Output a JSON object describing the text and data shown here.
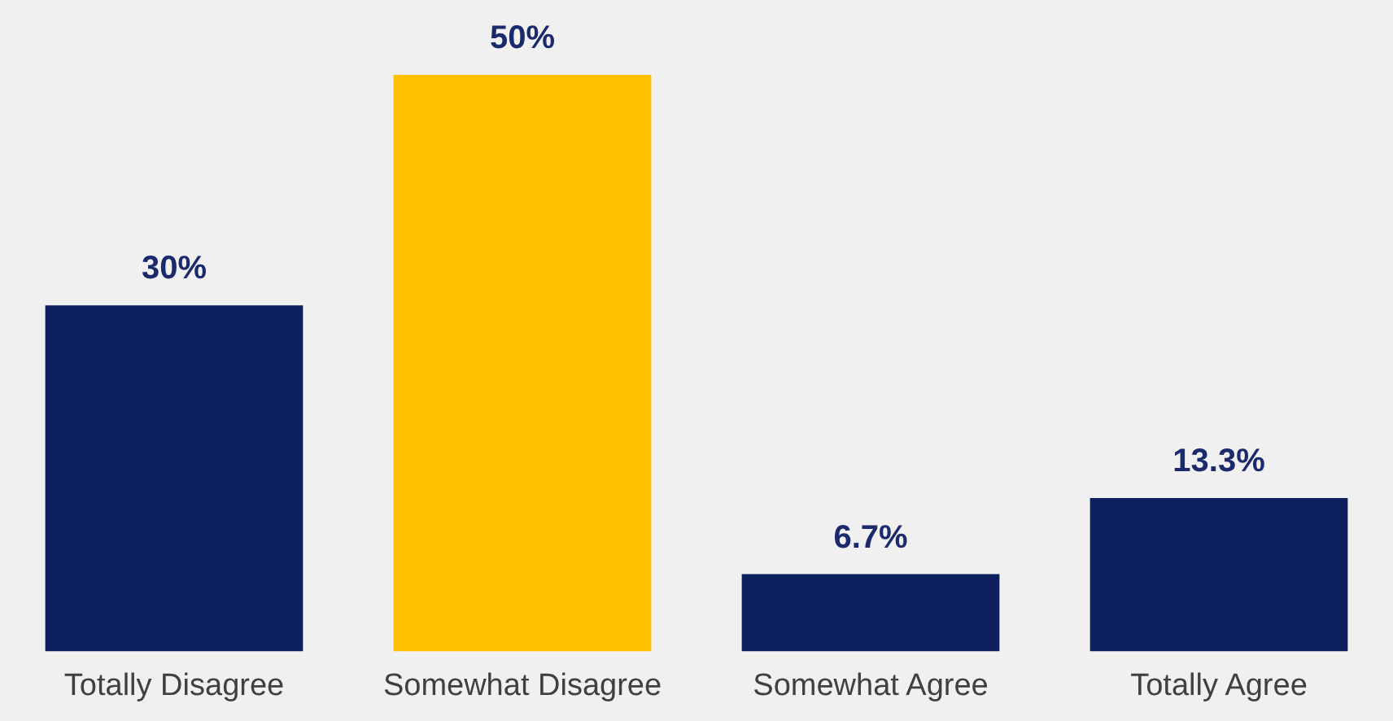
{
  "chart_data": {
    "type": "bar",
    "categories": [
      "Totally Disagree",
      "Somewhat Disagree",
      "Somewhat Agree",
      "Totally Agree"
    ],
    "values": [
      30,
      50,
      6.7,
      13.3
    ],
    "colors": [
      "#0d1f5c",
      "#ffc000",
      "#0d1f5c",
      "#0d1f5c"
    ],
    "value_labels": [
      "30%",
      "50%",
      "6.7%",
      "13.3%"
    ],
    "grid": false,
    "legend": false
  }
}
